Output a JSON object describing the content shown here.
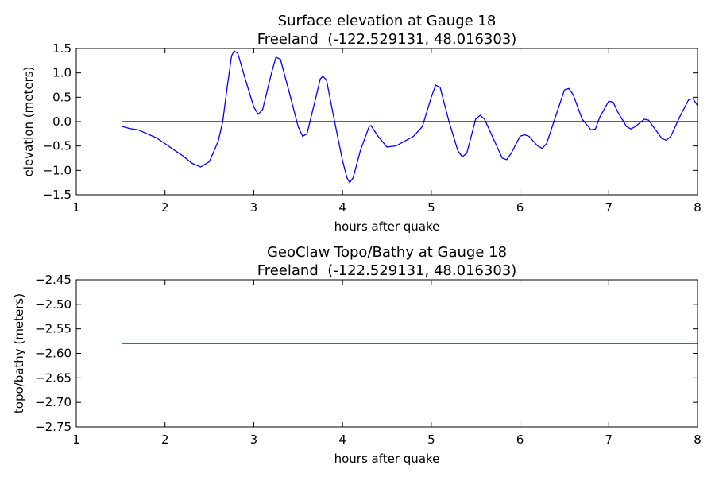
{
  "chart_data": [
    {
      "type": "line",
      "title": "Surface elevation at Gauge 18",
      "subtitle": "Freeland  (-122.529131, 48.016303)",
      "xlabel": "hours after quake",
      "ylabel": "elevation (meters)",
      "xlim": [
        1,
        8
      ],
      "xticks": [
        1,
        2,
        3,
        4,
        5,
        6,
        7,
        8
      ],
      "ylim": [
        -1.5,
        1.5
      ],
      "yticks": [
        {
          "value": -1.5,
          "label": "−1.5"
        },
        {
          "value": -1,
          "label": "−1.0"
        },
        {
          "value": -0.5,
          "label": "−0.5"
        },
        {
          "value": 0,
          "label": "0.0"
        },
        0.5,
        {
          "value": 1,
          "label": "1.0"
        },
        1.5
      ],
      "series": [
        {
          "color": "#0000ff",
          "x": [
            1.52,
            1.6,
            1.7,
            1.8,
            1.9,
            2.0,
            2.1,
            2.2,
            2.3,
            2.4,
            2.5,
            2.6,
            2.65,
            2.7,
            2.75,
            2.78,
            2.82,
            2.9,
            3.0,
            3.05,
            3.1,
            3.2,
            3.25,
            3.3,
            3.4,
            3.5,
            3.55,
            3.6,
            3.7,
            3.75,
            3.78,
            3.82,
            3.9,
            4.0,
            4.05,
            4.08,
            4.12,
            4.2,
            4.3,
            4.32,
            4.4,
            4.5,
            4.6,
            4.7,
            4.8,
            4.9,
            5.0,
            5.05,
            5.1,
            5.2,
            5.3,
            5.35,
            5.4,
            5.5,
            5.55,
            5.6,
            5.7,
            5.8,
            5.85,
            5.9,
            6.0,
            6.05,
            6.1,
            6.2,
            6.25,
            6.3,
            6.4,
            6.5,
            6.55,
            6.6,
            6.7,
            6.8,
            6.85,
            6.9,
            7.0,
            7.05,
            7.1,
            7.2,
            7.25,
            7.3,
            7.4,
            7.45,
            7.5,
            7.6,
            7.65,
            7.7,
            7.8,
            7.9,
            7.95,
            8.0
          ],
          "values": [
            -0.1,
            -0.14,
            -0.17,
            -0.25,
            -0.33,
            -0.45,
            -0.58,
            -0.7,
            -0.85,
            -0.93,
            -0.82,
            -0.4,
            0.0,
            0.7,
            1.35,
            1.45,
            1.4,
            0.9,
            0.3,
            0.15,
            0.25,
            1.0,
            1.32,
            1.28,
            0.6,
            -0.1,
            -0.3,
            -0.25,
            0.5,
            0.88,
            0.93,
            0.85,
            0.1,
            -0.8,
            -1.15,
            -1.25,
            -1.15,
            -0.6,
            -0.1,
            -0.08,
            -0.3,
            -0.52,
            -0.5,
            -0.4,
            -0.3,
            -0.1,
            0.5,
            0.75,
            0.7,
            0.0,
            -0.6,
            -0.72,
            -0.65,
            0.05,
            0.13,
            0.05,
            -0.35,
            -0.75,
            -0.78,
            -0.65,
            -0.3,
            -0.27,
            -0.3,
            -0.5,
            -0.55,
            -0.45,
            0.1,
            0.65,
            0.68,
            0.55,
            0.05,
            -0.17,
            -0.15,
            0.1,
            0.42,
            0.4,
            0.2,
            -0.1,
            -0.15,
            -0.1,
            0.05,
            0.03,
            -0.1,
            -0.35,
            -0.38,
            -0.3,
            0.1,
            0.45,
            0.47,
            0.33
          ]
        },
        {
          "color": "#000000",
          "x": [
            1.52,
            8
          ],
          "values": [
            0,
            0
          ]
        }
      ]
    },
    {
      "type": "line",
      "title": "GeoClaw Topo/Bathy at Gauge 18",
      "subtitle": "Freeland  (-122.529131, 48.016303)",
      "xlabel": "hours after quake",
      "ylabel": "topo/bathy (meters)",
      "xlim": [
        1,
        8
      ],
      "xticks": [
        1,
        2,
        3,
        4,
        5,
        6,
        7,
        8
      ],
      "ylim": [
        -2.75,
        -2.45
      ],
      "yticks": [
        {
          "value": -2.75,
          "label": "−2.75"
        },
        {
          "value": -2.7,
          "label": "−2.70"
        },
        {
          "value": -2.65,
          "label": "−2.65"
        },
        {
          "value": -2.6,
          "label": "−2.60"
        },
        {
          "value": -2.55,
          "label": "−2.55"
        },
        {
          "value": -2.5,
          "label": "−2.50"
        },
        {
          "value": -2.45,
          "label": "−2.45"
        }
      ],
      "series": [
        {
          "color": "#008000",
          "x": [
            1.52,
            8
          ],
          "values": [
            -2.58,
            -2.58
          ]
        }
      ]
    }
  ]
}
